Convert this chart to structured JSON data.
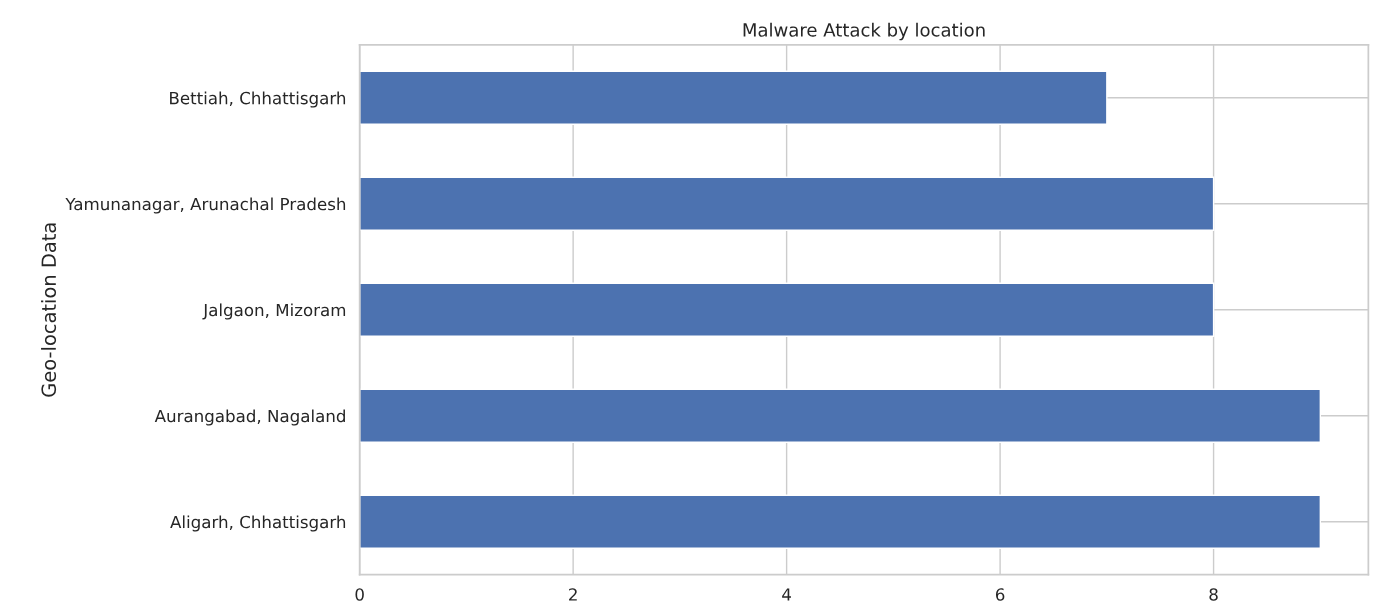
{
  "chart_data": {
    "type": "bar",
    "orientation": "horizontal",
    "title": "Malware Attack by location",
    "ylabel": "Geo-location Data",
    "categories": [
      "Bettiah, Chhattisgarh",
      "Yamunanagar, Arunachal Pradesh",
      "Jalgaon, Mizoram",
      "Aurangabad, Nagaland",
      "Aligarh, Chhattisgarh"
    ],
    "values": [
      7,
      8,
      8,
      9,
      9
    ],
    "color": "#4c72b0",
    "xlim": [
      0,
      9.45
    ],
    "xticks": [
      0,
      2,
      4,
      6,
      8
    ],
    "grid": true
  }
}
